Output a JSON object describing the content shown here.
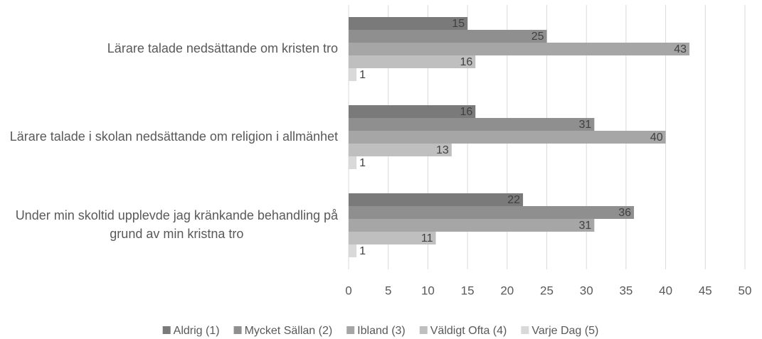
{
  "chart_data": {
    "type": "barh",
    "categories": [
      "Lärare talade nedsättande om kristen tro",
      "Lärare talade i skolan nedsättande om religion i allmänhet",
      "Under min skoltid upplevde jag kränkande behandling på grund av min kristna tro"
    ],
    "series": [
      {
        "name": "Aldrig (1)",
        "color": "#7a7a7a",
        "values": [
          15,
          16,
          22
        ]
      },
      {
        "name": "Mycket Sällan (2)",
        "color": "#8f8f8f",
        "values": [
          25,
          31,
          36
        ]
      },
      {
        "name": "Ibland (3)",
        "color": "#a6a6a6",
        "values": [
          43,
          40,
          31
        ]
      },
      {
        "name": "Väldigt Ofta (4)",
        "color": "#bfbfbf",
        "values": [
          16,
          13,
          11
        ]
      },
      {
        "name": "Varje Dag (5)",
        "color": "#d9d9d9",
        "values": [
          1,
          1,
          1
        ]
      }
    ],
    "xlim": [
      0,
      50
    ],
    "xticks": [
      0,
      5,
      10,
      15,
      20,
      25,
      30,
      35,
      40,
      45,
      50
    ],
    "grid": true,
    "legend": "bottom"
  }
}
